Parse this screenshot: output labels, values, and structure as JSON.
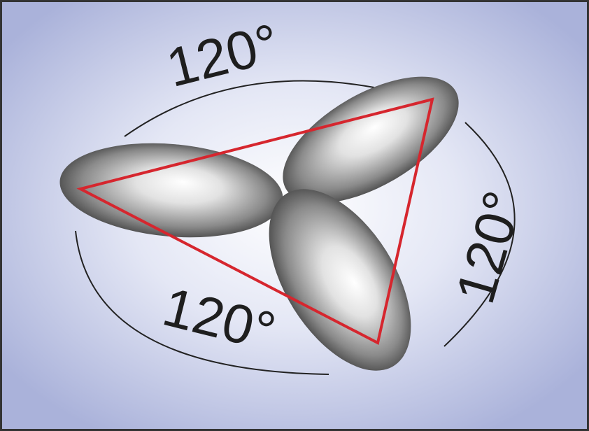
{
  "angle_labels": [
    "120°",
    "120°",
    "120°"
  ]
}
